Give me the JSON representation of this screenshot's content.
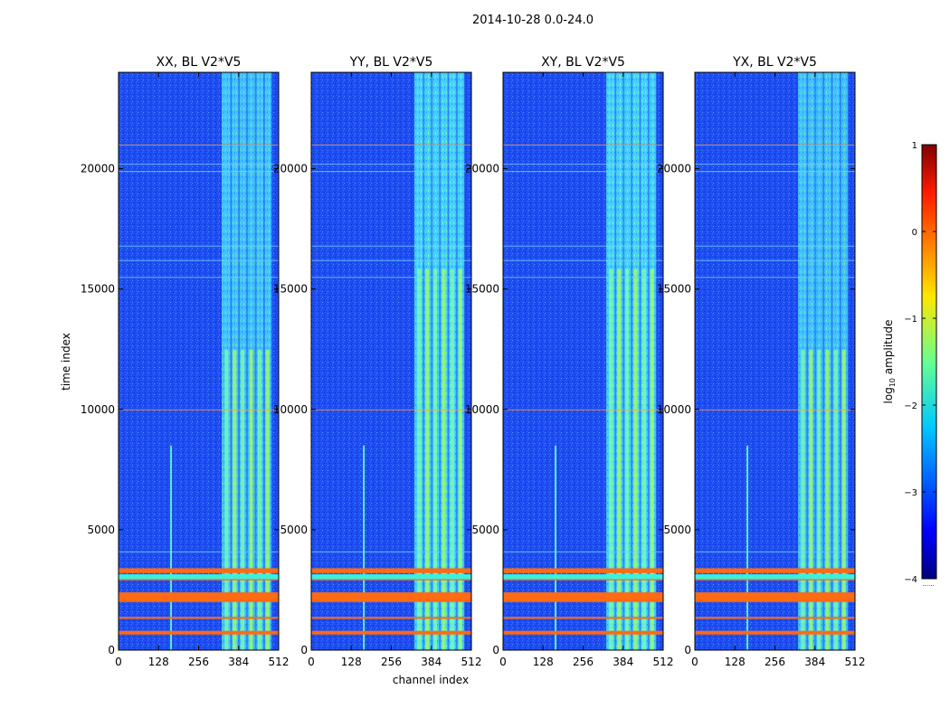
{
  "chart_data": {
    "type": "heatmap",
    "suptitle": "2014-10-28 0.0-24.0",
    "xlabel": "channel index",
    "ylabel": "time index",
    "xlim": [
      0,
      512
    ],
    "ylim": [
      0,
      24000
    ],
    "x_ticks": [
      0,
      128,
      256,
      384,
      512
    ],
    "y_ticks": [
      0,
      5000,
      10000,
      15000,
      20000
    ],
    "panels": [
      {
        "title": "XX, BL V2*V5",
        "pol": "XX"
      },
      {
        "title": "YY, BL V2*V5",
        "pol": "YY"
      },
      {
        "title": "XY, BL V2*V5",
        "pol": "XY"
      },
      {
        "title": "YX, BL V2*V5",
        "pol": "YX"
      }
    ],
    "bright_band_channels": [
      330,
      490
    ],
    "rfi_line_channel": 168,
    "flagged_time_rows": [
      {
        "start": 2000,
        "end": 2400
      },
      {
        "start": 3200,
        "end": 3400
      },
      {
        "start": 650,
        "end": 800
      },
      {
        "start": 1300,
        "end": 1380
      },
      {
        "start": 2900,
        "end": 3000
      }
    ],
    "colorbar": {
      "label": "log10 amplitude",
      "label_main": "log",
      "label_sub": "10",
      "label_rest": " amplitude",
      "min": -4,
      "max": 1,
      "ticks": [
        1,
        0,
        -1,
        -2,
        -3,
        -4
      ],
      "colormap": "jet",
      "footnote": "......"
    }
  }
}
